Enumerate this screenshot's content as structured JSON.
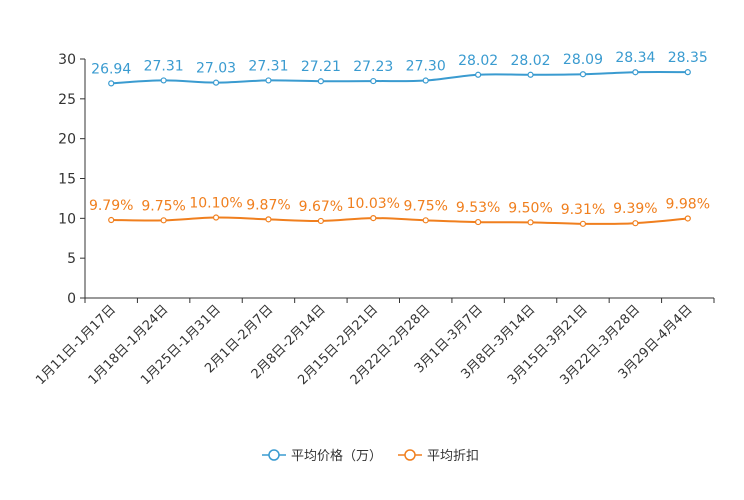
{
  "chart_data": {
    "type": "line",
    "title": "",
    "xlabel": "",
    "ylabel": "",
    "ylim": [
      0,
      30
    ],
    "yticks": [
      0,
      5,
      10,
      15,
      20,
      25,
      30
    ],
    "grid": false,
    "legend_position": "bottom",
    "categories": [
      "1月11日-1月17日",
      "1月18日-1月24日",
      "1月25日-1月31日",
      "2月1日-2月7日",
      "2月8日-2月14日",
      "2月15日-2月21日",
      "2月22日-2月28日",
      "3月1日-3月7日",
      "3月8日-3月14日",
      "3月15日-3月21日",
      "3月22日-3月28日",
      "3月29日-4月4日"
    ],
    "series": [
      {
        "name": "平均价格（万）",
        "color": "#3a9bd0",
        "values": [
          26.94,
          27.31,
          27.03,
          27.31,
          27.21,
          27.23,
          27.3,
          28.02,
          28.02,
          28.09,
          28.34,
          28.35
        ],
        "labels": [
          "26.94",
          "27.31",
          "27.03",
          "27.31",
          "27.21",
          "27.23",
          "27.30",
          "28.02",
          "28.02",
          "28.09",
          "28.34",
          "28.35"
        ]
      },
      {
        "name": "平均折扣",
        "color": "#f07f1e",
        "values": [
          9.79,
          9.75,
          10.1,
          9.87,
          9.67,
          10.03,
          9.75,
          9.53,
          9.5,
          9.31,
          9.39,
          9.98
        ],
        "labels": [
          "9.79%",
          "9.75%",
          "10.10%",
          "9.87%",
          "9.67%",
          "10.03%",
          "9.75%",
          "9.53%",
          "9.50%",
          "9.31%",
          "9.39%",
          "9.98%"
        ]
      }
    ]
  }
}
